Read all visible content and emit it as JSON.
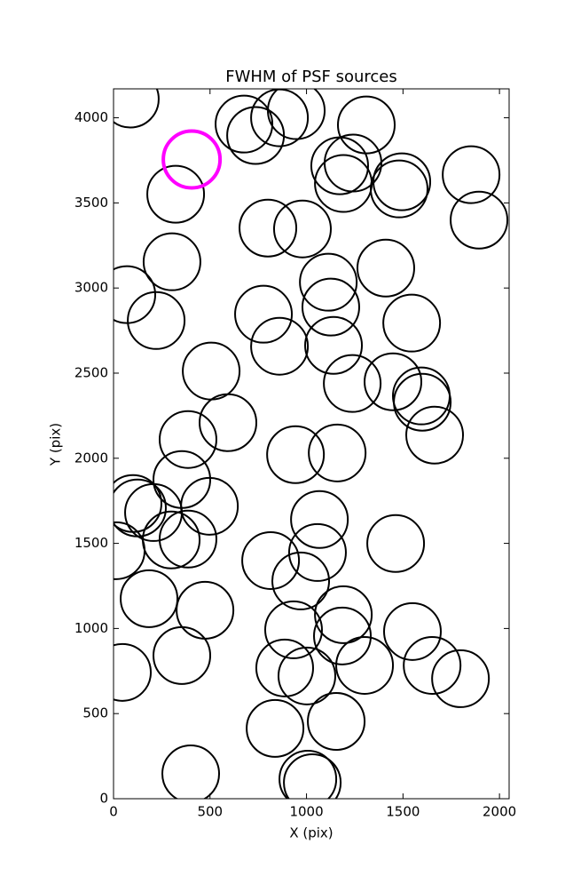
{
  "chart_data": {
    "type": "scatter",
    "title": "FWHM of PSF sources",
    "x_label": "X (pix)",
    "y_label": "Y (pix)",
    "xlim": [
      0,
      2050
    ],
    "ylim": [
      0,
      4170
    ],
    "xticks": [
      0,
      500,
      1000,
      1500,
      2000
    ],
    "yticks": [
      0,
      500,
      1000,
      1500,
      2000,
      2500,
      3000,
      3500,
      4000
    ],
    "series": [
      {
        "color": "#000000",
        "x": [
          87,
          676,
          736,
          860,
          947,
          1310,
          1172,
          1241,
          1191,
          1494,
          1480,
          1853,
          1894,
          322,
          800,
          979,
          303,
          69,
          221,
          1113,
          1411,
          1126,
          777,
          1545,
          860,
          1140,
          506,
          1237,
          1448,
          1595,
          1600,
          1664,
          593,
          386,
          943,
          1159,
          354,
          497,
          101,
          207,
          124,
          299,
          386,
          14,
          1067,
          1057,
          1462,
          814,
          970,
          184,
          474,
          1191,
          1186,
          933,
          1549,
          46,
          354,
          887,
          1002,
          1301,
          1651,
          1798,
          837,
          1154,
          1007,
          1030,
          400
        ],
        "values": [
          4110,
          3963,
          3896,
          4000,
          4042,
          3958,
          3718,
          3734,
          3614,
          3624,
          3582,
          3666,
          3399,
          3551,
          3352,
          3347,
          3154,
          2961,
          2809,
          3034,
          3117,
          2888,
          2846,
          2794,
          2658,
          2663,
          2512,
          2439,
          2449,
          2366,
          2329,
          2136,
          2209,
          2110,
          2021,
          2031,
          1875,
          1718,
          1734,
          1681,
          1708,
          1520,
          1525,
          1457,
          1640,
          1446,
          1499,
          1399,
          1279,
          1175,
          1107,
          1081,
          956,
          992,
          982,
          742,
          841,
          768,
          721,
          783,
          783,
          705,
          413,
          454,
          115,
          94,
          146
        ]
      },
      {
        "color": "#ff00ff",
        "x": [
          405
        ],
        "values": [
          3755
        ]
      }
    ]
  }
}
